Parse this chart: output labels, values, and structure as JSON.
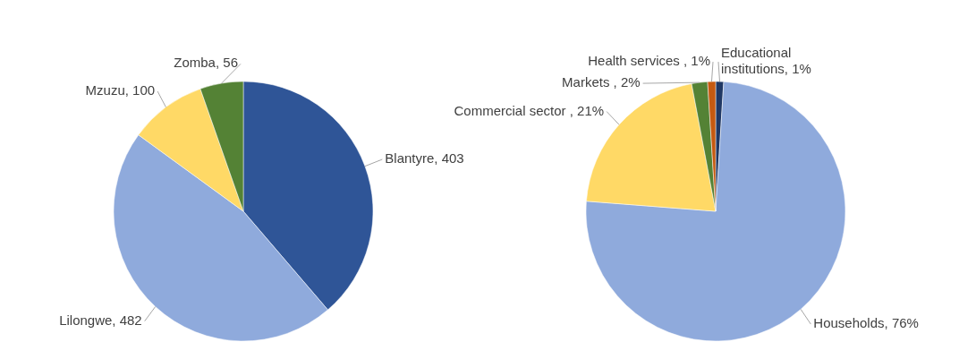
{
  "chart_data": [
    {
      "type": "pie",
      "categories": [
        "Blantyre",
        "Lilongwe",
        "Mzuzu",
        "Zomba"
      ],
      "values": [
        403,
        482,
        100,
        56
      ],
      "colors": [
        "#2f5597",
        "#8faadc",
        "#ffd966",
        "#548235"
      ],
      "value_labels": [
        "403",
        "482",
        "100",
        "56"
      ]
    },
    {
      "type": "pie",
      "categories": [
        "Educational institutions",
        "Households",
        "Commercial sector ",
        "Markets ",
        "Health services "
      ],
      "values": [
        1,
        76,
        21,
        2,
        1
      ],
      "colors": [
        "#203864",
        "#8faadc",
        "#ffd966",
        "#548235",
        "#c55a11"
      ],
      "value_labels": [
        "1%",
        "76%",
        "21%",
        "2%",
        "1%"
      ]
    }
  ]
}
